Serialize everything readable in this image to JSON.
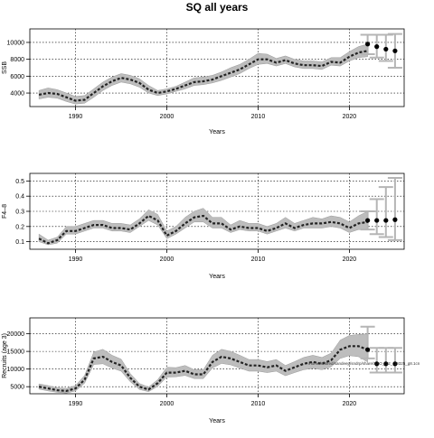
{
  "title": "SQ all years",
  "chart_data": [
    {
      "type": "line",
      "ylabel": "SSB",
      "xlabel": "Years",
      "xlim": [
        1985,
        2026
      ],
      "ylim": [
        2400,
        11600
      ],
      "x_ticks": [
        1990,
        2000,
        2010,
        2020
      ],
      "y_ticks": [
        4000,
        6000,
        8000,
        10000
      ],
      "grid": true,
      "series": [
        {
          "x": [
            1986,
            1987,
            1988,
            1989,
            1990,
            1991,
            1992,
            1993,
            1994,
            1995,
            1996,
            1997,
            1998,
            1999,
            2000,
            2001,
            2002,
            2003,
            2004,
            2005,
            2006,
            2007,
            2008,
            2009,
            2010,
            2011,
            2012,
            2013,
            2014,
            2015,
            2016,
            2017,
            2018,
            2019,
            2020,
            2021,
            2022
          ],
          "y": [
            3800,
            4000,
            3900,
            3500,
            3100,
            3200,
            4000,
            4800,
            5400,
            5800,
            5600,
            5200,
            4400,
            4000,
            4200,
            4500,
            4900,
            5300,
            5400,
            5600,
            6000,
            6400,
            6800,
            7400,
            8000,
            8000,
            7600,
            7900,
            7500,
            7300,
            7300,
            7200,
            7700,
            7600,
            8300,
            8800,
            9000
          ],
          "lower": [
            3300,
            3500,
            3400,
            3000,
            2700,
            2800,
            3500,
            4300,
            4900,
            5300,
            5100,
            4700,
            4000,
            3700,
            3900,
            4200,
            4500,
            4900,
            5000,
            5200,
            5500,
            5900,
            6300,
            6900,
            7400,
            7500,
            7200,
            7500,
            7100,
            6900,
            6900,
            6800,
            7300,
            7200,
            7800,
            8200,
            8300
          ],
          "upper": [
            4300,
            4600,
            4400,
            4000,
            3600,
            3700,
            4500,
            5300,
            5900,
            6300,
            6100,
            5700,
            4900,
            4300,
            4500,
            4800,
            5300,
            5800,
            5900,
            6100,
            6500,
            7000,
            7400,
            8000,
            8700,
            8600,
            8100,
            8400,
            8000,
            7800,
            7800,
            7700,
            8200,
            8200,
            8900,
            9500,
            9800
          ]
        }
      ],
      "projection": [
        {
          "x": 2022,
          "y": 9800,
          "lower": 8600,
          "upper": 10900
        },
        {
          "x": 2023,
          "y": 9500,
          "lower": 8200,
          "upper": 10900
        },
        {
          "x": 2024,
          "y": 9200,
          "lower": 7800,
          "upper": 10900
        },
        {
          "x": 2025,
          "y": 9000,
          "lower": 7000,
          "upper": 11000
        }
      ]
    },
    {
      "type": "line",
      "ylabel": "F4–8",
      "xlabel": "Years",
      "xlim": [
        1985,
        2026
      ],
      "ylim": [
        0.05,
        0.55
      ],
      "x_ticks": [
        1990,
        2000,
        2010,
        2020
      ],
      "y_ticks": [
        0.1,
        0.2,
        0.3,
        0.4,
        0.5
      ],
      "y_tick_labels": [
        "0.1",
        "0.2",
        "0.3",
        "0.4",
        "0.5"
      ],
      "grid": true,
      "series": [
        {
          "x": [
            1986,
            1987,
            1988,
            1989,
            1990,
            1991,
            1992,
            1993,
            1994,
            1995,
            1996,
            1997,
            1998,
            1999,
            2000,
            2001,
            2002,
            2003,
            2004,
            2005,
            2006,
            2007,
            2008,
            2009,
            2010,
            2011,
            2012,
            2013,
            2014,
            2015,
            2016,
            2017,
            2018,
            2019,
            2020,
            2021,
            2022
          ],
          "y": [
            0.12,
            0.09,
            0.11,
            0.17,
            0.17,
            0.19,
            0.21,
            0.21,
            0.19,
            0.19,
            0.18,
            0.22,
            0.27,
            0.24,
            0.14,
            0.17,
            0.22,
            0.26,
            0.27,
            0.22,
            0.22,
            0.18,
            0.2,
            0.19,
            0.19,
            0.17,
            0.19,
            0.22,
            0.19,
            0.21,
            0.22,
            0.22,
            0.23,
            0.22,
            0.19,
            0.22,
            0.23
          ],
          "lower": [
            0.1,
            0.08,
            0.09,
            0.15,
            0.15,
            0.17,
            0.19,
            0.19,
            0.17,
            0.17,
            0.16,
            0.2,
            0.24,
            0.21,
            0.12,
            0.15,
            0.19,
            0.23,
            0.23,
            0.19,
            0.19,
            0.16,
            0.18,
            0.17,
            0.17,
            0.15,
            0.17,
            0.19,
            0.17,
            0.19,
            0.19,
            0.19,
            0.2,
            0.19,
            0.16,
            0.18,
            0.18
          ],
          "upper": [
            0.15,
            0.11,
            0.13,
            0.2,
            0.2,
            0.22,
            0.24,
            0.24,
            0.22,
            0.22,
            0.21,
            0.25,
            0.31,
            0.28,
            0.17,
            0.2,
            0.26,
            0.3,
            0.32,
            0.26,
            0.26,
            0.21,
            0.24,
            0.22,
            0.22,
            0.2,
            0.22,
            0.26,
            0.22,
            0.24,
            0.26,
            0.25,
            0.27,
            0.26,
            0.23,
            0.27,
            0.3
          ]
        }
      ],
      "projection": [
        {
          "x": 2022,
          "y": 0.24,
          "lower": 0.18,
          "upper": 0.3
        },
        {
          "x": 2023,
          "y": 0.24,
          "lower": 0.15,
          "upper": 0.38
        },
        {
          "x": 2024,
          "y": 0.24,
          "lower": 0.13,
          "upper": 0.46
        },
        {
          "x": 2025,
          "y": 0.245,
          "lower": 0.11,
          "upper": 0.52
        }
      ]
    },
    {
      "type": "line",
      "ylabel": "Recruits (age 3)",
      "xlabel": "Years",
      "xlim": [
        1985,
        2026
      ],
      "ylim": [
        3000,
        24500
      ],
      "x_ticks": [
        1990,
        2000,
        2010,
        2020
      ],
      "y_ticks": [
        5000,
        10000,
        15000,
        20000
      ],
      "grid": true,
      "annotation": "/home/shared/sandeep/sndrp/share/SAO_r12_r19325_g8.1cn",
      "series": [
        {
          "x": [
            1986,
            1987,
            1988,
            1989,
            1990,
            1991,
            1992,
            1993,
            1994,
            1995,
            1996,
            1997,
            1998,
            1999,
            2000,
            2001,
            2002,
            2003,
            2004,
            2005,
            2006,
            2007,
            2008,
            2009,
            2010,
            2011,
            2012,
            2013,
            2014,
            2015,
            2016,
            2017,
            2018,
            2019,
            2020,
            2021,
            2022
          ],
          "y": [
            5000,
            4500,
            4000,
            3800,
            4500,
            7000,
            13000,
            13500,
            12000,
            11000,
            7500,
            5000,
            4200,
            6000,
            9000,
            9000,
            9500,
            8500,
            8500,
            12000,
            13500,
            13000,
            12000,
            11000,
            11000,
            10500,
            11000,
            9500,
            10500,
            11500,
            12000,
            11500,
            12500,
            15500,
            16500,
            16500,
            15500
          ],
          "lower": [
            4300,
            3800,
            3400,
            3200,
            3800,
            6000,
            11300,
            11500,
            10300,
            9400,
            6400,
            4200,
            3600,
            5100,
            7700,
            7800,
            8200,
            7300,
            7300,
            10300,
            11600,
            11200,
            10300,
            9400,
            9400,
            9000,
            9400,
            8100,
            9000,
            9800,
            10200,
            9800,
            10600,
            13000,
            13800,
            13500,
            12000
          ],
          "upper": [
            5800,
            5300,
            4700,
            4500,
            5300,
            8200,
            14800,
            15600,
            13900,
            12800,
            8700,
            5900,
            4900,
            7000,
            10500,
            10400,
            11000,
            9800,
            9800,
            13900,
            15600,
            15000,
            13900,
            12700,
            12700,
            12100,
            12700,
            11000,
            12100,
            13300,
            13900,
            13300,
            14500,
            18200,
            19500,
            19800,
            20000
          ]
        }
      ],
      "projection": [
        {
          "x": 2022,
          "y": 15500,
          "lower": 13000,
          "upper": 22000
        },
        {
          "x": 2023,
          "y": 11500,
          "lower": 9000,
          "upper": 16000
        },
        {
          "x": 2024,
          "y": 11500,
          "lower": 9000,
          "upper": 16000
        },
        {
          "x": 2025,
          "y": 11500,
          "lower": 9000,
          "upper": 16000
        }
      ]
    }
  ]
}
